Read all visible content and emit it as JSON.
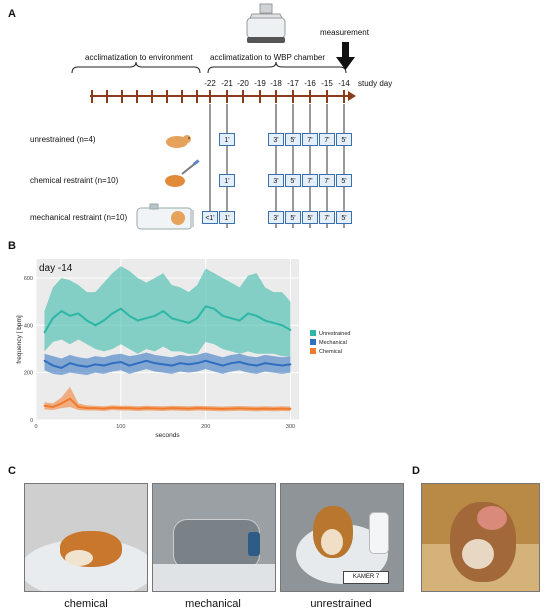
{
  "panels": {
    "a": "A",
    "b": "B",
    "c": "C",
    "d": "D"
  },
  "timeline": {
    "phase_environment": "acclimatization to environment",
    "phase_chamber": "acclimatization to WBP chamber",
    "measurement_label": "measurement",
    "axis_label": "study day",
    "days": [
      "-22",
      "-21",
      "-20",
      "-19",
      "-18",
      "-17",
      "-16",
      "-15",
      "-14"
    ],
    "groups": [
      {
        "label": "unrestrained (n=4)",
        "durations": [
          "",
          "1'",
          "",
          "",
          "3'",
          "5'",
          "7'",
          "7'",
          "5'"
        ]
      },
      {
        "label": "chemical restraint (n=10)",
        "durations": [
          "",
          "1'",
          "",
          "",
          "3'",
          "5'",
          "7'",
          "7'",
          "5'"
        ]
      },
      {
        "label": "mechanical restraint (n=10)",
        "durations": [
          "<1'",
          "1'",
          "",
          "",
          "3'",
          "5'",
          "5'",
          "7'",
          "5'"
        ]
      }
    ]
  },
  "chart_data": {
    "type": "line",
    "title": "day -14",
    "xlabel": "seconds",
    "ylabel": "frequency [ bpm]",
    "xlim": [
      0,
      310
    ],
    "ylim": [
      0,
      680
    ],
    "xticks": [
      0,
      100,
      200,
      300
    ],
    "yticks": [
      0,
      200,
      400,
      600
    ],
    "legend_position": "right",
    "x": [
      10,
      20,
      30,
      40,
      50,
      60,
      70,
      80,
      90,
      100,
      110,
      120,
      130,
      140,
      150,
      160,
      170,
      180,
      190,
      200,
      210,
      220,
      230,
      240,
      250,
      260,
      270,
      280,
      290,
      300
    ],
    "series": [
      {
        "name": "Unrestrained",
        "color": "#2db7a6",
        "values": [
          370,
          430,
          460,
          440,
          450,
          420,
          400,
          420,
          450,
          470,
          440,
          420,
          430,
          440,
          460,
          430,
          420,
          410,
          430,
          480,
          470,
          440,
          430,
          420,
          450,
          440,
          420,
          410,
          400,
          380
        ],
        "upper": [
          460,
          560,
          600,
          590,
          570,
          540,
          540,
          580,
          620,
          650,
          630,
          600,
          580,
          600,
          620,
          570,
          560,
          540,
          570,
          640,
          620,
          600,
          580,
          560,
          610,
          620,
          560,
          540,
          540,
          500
        ],
        "lower": [
          290,
          330,
          340,
          320,
          340,
          320,
          300,
          290,
          300,
          320,
          300,
          280,
          300,
          290,
          310,
          290,
          290,
          280,
          280,
          330,
          320,
          300,
          290,
          280,
          290,
          280,
          280,
          280,
          270,
          270
        ]
      },
      {
        "name": "Mechanical",
        "color": "#2e6fc0",
        "values": [
          250,
          230,
          220,
          240,
          230,
          225,
          235,
          230,
          240,
          245,
          230,
          240,
          250,
          240,
          235,
          230,
          240,
          235,
          240,
          250,
          240,
          230,
          240,
          245,
          235,
          230,
          240,
          235,
          230,
          235
        ],
        "upper": [
          280,
          270,
          260,
          275,
          265,
          260,
          270,
          265,
          275,
          280,
          270,
          275,
          285,
          275,
          270,
          265,
          275,
          270,
          275,
          285,
          275,
          265,
          275,
          280,
          270,
          265,
          275,
          270,
          265,
          270
        ],
        "lower": [
          210,
          195,
          190,
          200,
          195,
          190,
          200,
          195,
          205,
          210,
          195,
          205,
          215,
          205,
          200,
          195,
          205,
          200,
          205,
          215,
          205,
          195,
          205,
          210,
          200,
          195,
          205,
          200,
          195,
          200
        ]
      },
      {
        "name": "Chemical",
        "color": "#f07b2c",
        "values": [
          60,
          55,
          70,
          90,
          55,
          50,
          50,
          48,
          52,
          50,
          50,
          48,
          50,
          49,
          48,
          50,
          49,
          48,
          50,
          49,
          48,
          47,
          48,
          49,
          48,
          47,
          48,
          47,
          48,
          47
        ],
        "upper": [
          75,
          70,
          95,
          140,
          70,
          62,
          60,
          58,
          62,
          60,
          60,
          58,
          60,
          59,
          58,
          60,
          59,
          58,
          60,
          59,
          58,
          57,
          58,
          59,
          58,
          57,
          58,
          57,
          58,
          57
        ],
        "lower": [
          45,
          42,
          50,
          55,
          42,
          40,
          40,
          38,
          42,
          40,
          40,
          38,
          40,
          39,
          38,
          40,
          39,
          38,
          40,
          39,
          38,
          37,
          38,
          39,
          38,
          37,
          38,
          37,
          38,
          37
        ]
      }
    ]
  },
  "captions": {
    "chemical": "chemical",
    "mechanical": "mechanical",
    "unrestrained": "unrestrained"
  },
  "photo_text": {
    "kamer": "KAMER 7"
  },
  "colors": {
    "timeline": "#8b3a1a",
    "box_border": "#3a6fb0",
    "box_fill": "#e4effa",
    "plot_bg": "#ebebeb"
  }
}
